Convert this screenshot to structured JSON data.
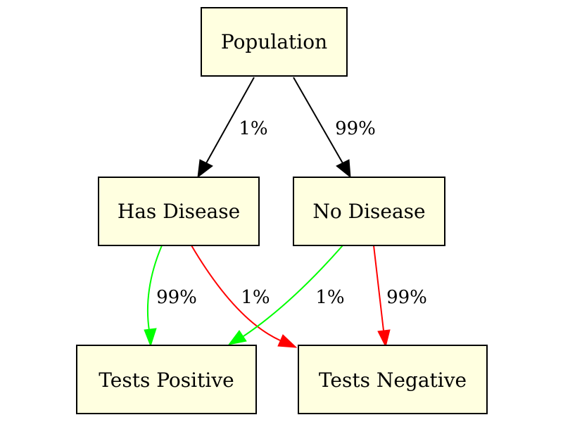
{
  "diagram": {
    "nodes": {
      "population": "Population",
      "has_disease": "Has Disease",
      "no_disease": "No Disease",
      "tests_positive": "Tests Positive",
      "tests_negative": "Tests Negative"
    },
    "edges": {
      "population_to_has_disease": "1%",
      "population_to_no_disease": "99%",
      "has_disease_to_tests_positive": "99%",
      "has_disease_to_tests_negative": "1%",
      "no_disease_to_tests_positive": "1%",
      "no_disease_to_tests_negative": "99%"
    },
    "colors": {
      "node_fill": "#ffffe0",
      "node_stroke": "#000000",
      "edge_neutral": "#000000",
      "edge_positive": "#00ff00",
      "edge_negative": "#ff0000"
    }
  }
}
